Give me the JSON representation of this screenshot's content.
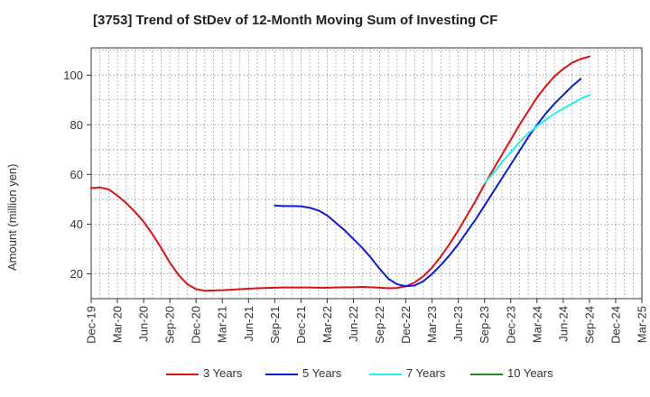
{
  "chart_data": {
    "type": "line",
    "title": "[3753]  Trend of StDev of 12-Month Moving Sum of Investing CF",
    "ylabel": "Amount (million yen)",
    "xlabel": "",
    "ylim": [
      10,
      111
    ],
    "yticks": [
      20,
      40,
      60,
      80,
      100
    ],
    "x_range": [
      "Dec-19",
      "Mar-25"
    ],
    "x_ticks": [
      "Dec-19",
      "Mar-20",
      "Jun-20",
      "Sep-20",
      "Dec-20",
      "Mar-21",
      "Jun-21",
      "Sep-21",
      "Dec-21",
      "Mar-22",
      "Jun-22",
      "Sep-22",
      "Dec-22",
      "Mar-23",
      "Jun-23",
      "Sep-23",
      "Dec-23",
      "Mar-24",
      "Jun-24",
      "Sep-24",
      "Dec-24",
      "Mar-25"
    ],
    "grid": true,
    "legend_position": "bottom",
    "series": [
      {
        "name": "3 Years",
        "color": "#dd1111",
        "points": [
          [
            "Dec-19",
            54.5
          ],
          [
            "Jan-20",
            54.8
          ],
          [
            "Feb-20",
            54
          ],
          [
            "Mar-20",
            51.5
          ],
          [
            "Apr-20",
            48.5
          ],
          [
            "May-20",
            45
          ],
          [
            "Jun-20",
            41
          ],
          [
            "Jul-20",
            36
          ],
          [
            "Aug-20",
            30.5
          ],
          [
            "Sep-20",
            24.5
          ],
          [
            "Oct-20",
            19.5
          ],
          [
            "Nov-20",
            15.8
          ],
          [
            "Dec-20",
            13.8
          ],
          [
            "Jan-21",
            13.2
          ],
          [
            "Feb-21",
            13.3
          ],
          [
            "Mar-21",
            13.4
          ],
          [
            "Apr-21",
            13.6
          ],
          [
            "May-21",
            13.8
          ],
          [
            "Jun-21",
            14
          ],
          [
            "Jul-21",
            14.2
          ],
          [
            "Aug-21",
            14.3
          ],
          [
            "Sep-21",
            14.4
          ],
          [
            "Oct-21",
            14.5
          ],
          [
            "Nov-21",
            14.5
          ],
          [
            "Dec-21",
            14.5
          ],
          [
            "Jan-22",
            14.5
          ],
          [
            "Feb-22",
            14.4
          ],
          [
            "Mar-22",
            14.4
          ],
          [
            "Apr-22",
            14.5
          ],
          [
            "May-22",
            14.6
          ],
          [
            "Jun-22",
            14.6
          ],
          [
            "Jul-22",
            14.7
          ],
          [
            "Aug-22",
            14.6
          ],
          [
            "Sep-22",
            14.4
          ],
          [
            "Oct-22",
            14.2
          ],
          [
            "Nov-22",
            14.3
          ],
          [
            "Dec-22",
            15
          ],
          [
            "Jan-23",
            16.5
          ],
          [
            "Feb-23",
            19
          ],
          [
            "Mar-23",
            22.5
          ],
          [
            "Apr-23",
            27
          ],
          [
            "May-23",
            32
          ],
          [
            "Jun-23",
            37.5
          ],
          [
            "Jul-23",
            43.5
          ],
          [
            "Aug-23",
            49.5
          ],
          [
            "Sep-23",
            56
          ],
          [
            "Oct-23",
            62
          ],
          [
            "Nov-23",
            68
          ],
          [
            "Dec-23",
            74
          ],
          [
            "Jan-24",
            80
          ],
          [
            "Feb-24",
            85.5
          ],
          [
            "Mar-24",
            91
          ],
          [
            "Apr-24",
            95.5
          ],
          [
            "May-24",
            99.5
          ],
          [
            "Jun-24",
            102.5
          ],
          [
            "Jul-24",
            105
          ],
          [
            "Aug-24",
            106.5
          ],
          [
            "Sep-24",
            107.5
          ]
        ]
      },
      {
        "name": "5 Years",
        "color": "#0a1ad6",
        "points": [
          [
            "Sep-21",
            47.5
          ],
          [
            "Oct-21",
            47.3
          ],
          [
            "Nov-21",
            47.3
          ],
          [
            "Dec-21",
            47.2
          ],
          [
            "Jan-22",
            46.6
          ],
          [
            "Feb-22",
            45.5
          ],
          [
            "Mar-22",
            43.5
          ],
          [
            "Apr-22",
            40.5
          ],
          [
            "May-22",
            37.5
          ],
          [
            "Jun-22",
            34
          ],
          [
            "Jul-22",
            30.5
          ],
          [
            "Aug-22",
            26.5
          ],
          [
            "Sep-22",
            22
          ],
          [
            "Oct-22",
            18
          ],
          [
            "Nov-22",
            15.8
          ],
          [
            "Dec-22",
            15
          ],
          [
            "Jan-23",
            15.3
          ],
          [
            "Feb-23",
            17
          ],
          [
            "Mar-23",
            20
          ],
          [
            "Apr-23",
            23.5
          ],
          [
            "May-23",
            27.5
          ],
          [
            "Jun-23",
            32
          ],
          [
            "Jul-23",
            37
          ],
          [
            "Aug-23",
            42
          ],
          [
            "Sep-23",
            47.5
          ],
          [
            "Oct-23",
            53
          ],
          [
            "Nov-23",
            58.5
          ],
          [
            "Dec-23",
            64
          ],
          [
            "Jan-24",
            69.5
          ],
          [
            "Feb-24",
            75
          ],
          [
            "Mar-24",
            80
          ],
          [
            "Apr-24",
            84.5
          ],
          [
            "May-24",
            88.5
          ],
          [
            "Jun-24",
            92
          ],
          [
            "Jul-24",
            95.5
          ],
          [
            "Aug-24",
            98.5
          ]
        ]
      },
      {
        "name": "7 Years",
        "color": "#22eeee",
        "points": [
          [
            "Sep-23",
            56.5
          ],
          [
            "Oct-23",
            60.5
          ],
          [
            "Nov-23",
            65
          ],
          [
            "Dec-23",
            69
          ],
          [
            "Jan-24",
            73
          ],
          [
            "Feb-24",
            76.5
          ],
          [
            "Mar-24",
            79.5
          ],
          [
            "Apr-24",
            82
          ],
          [
            "May-24",
            84.5
          ],
          [
            "Jun-24",
            86.5
          ],
          [
            "Jul-24",
            88.5
          ],
          [
            "Aug-24",
            90.5
          ],
          [
            "Sep-24",
            92
          ]
        ]
      },
      {
        "name": "10 Years",
        "color": "#228b22",
        "points": []
      }
    ]
  }
}
